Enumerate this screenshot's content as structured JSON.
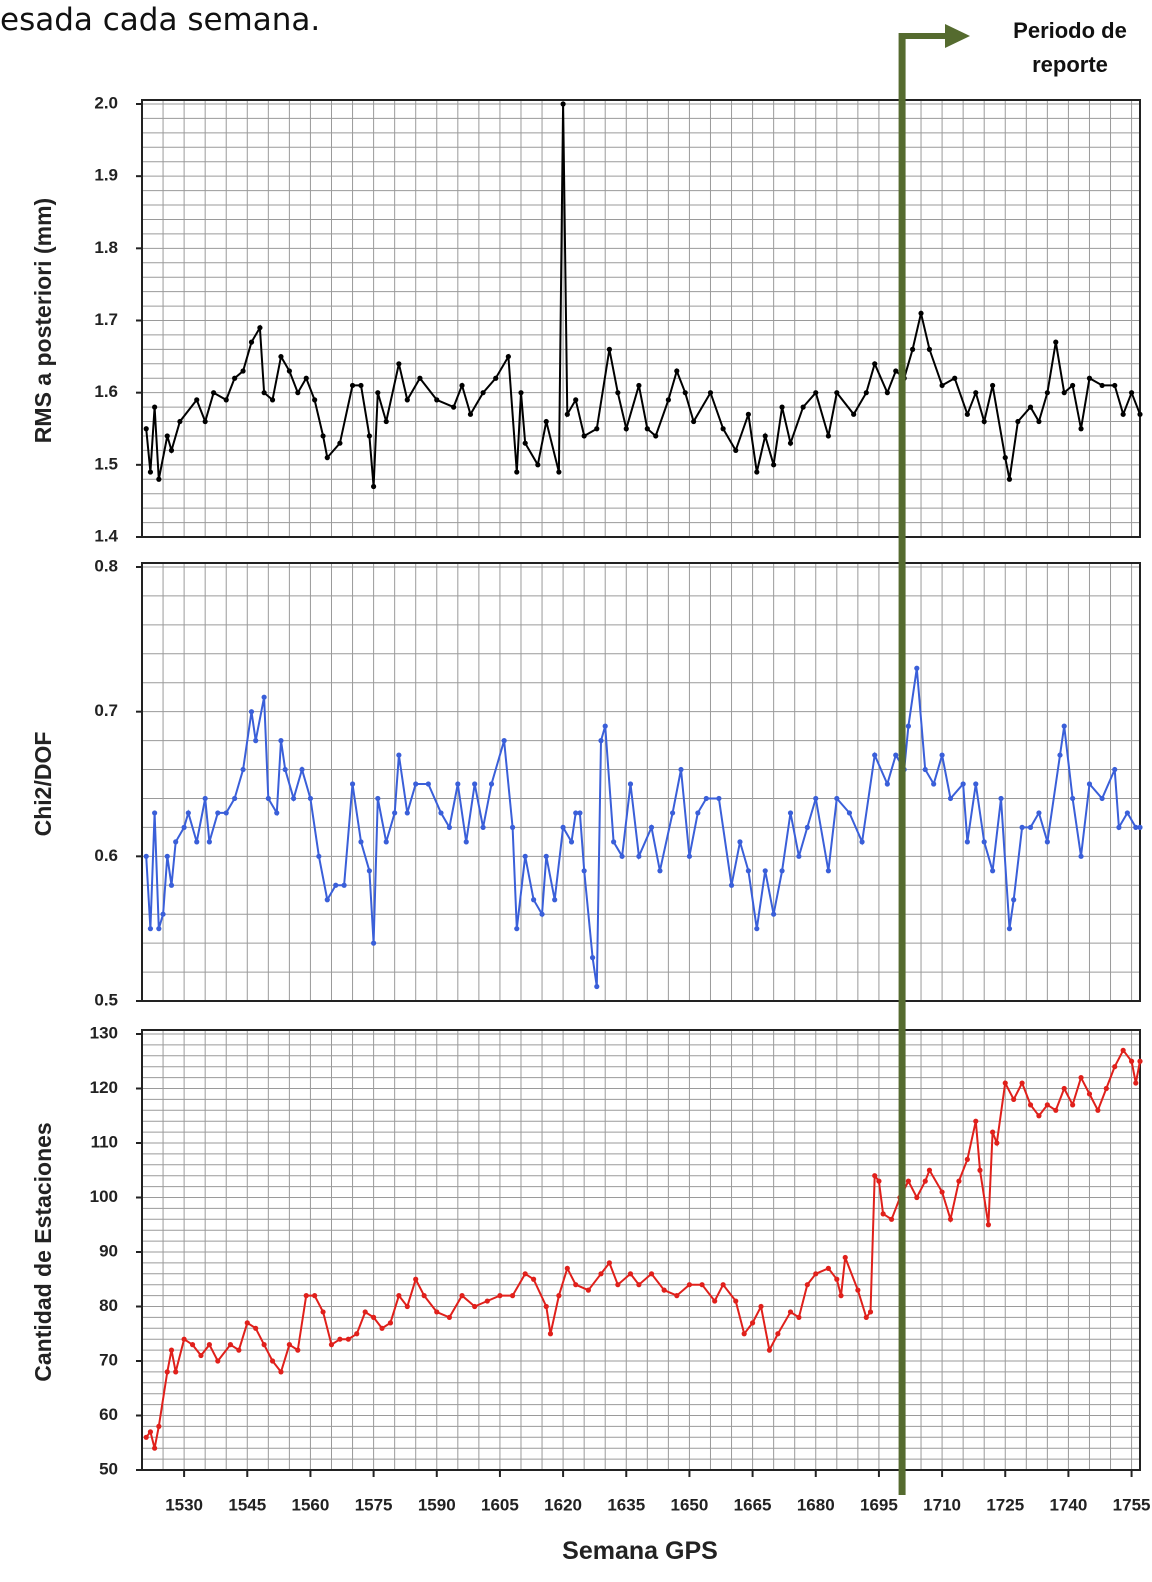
{
  "header": "esada cada semana.",
  "report_marker": {
    "label": "Periodo de reporte",
    "x": 1700.5,
    "color": "#556b2f"
  },
  "chart_data": [
    {
      "type": "line",
      "ylabel": "RMS a posteriori (mm)",
      "color": "#000000",
      "xlim": [
        1520,
        1757
      ],
      "ylim": [
        1.4,
        2.0
      ],
      "yticks": [
        1.4,
        1.5,
        1.6,
        1.7,
        1.8,
        1.9,
        {
          "value": 2,
          "label": "2.0"
        }
      ],
      "grid": true,
      "xgrid_step": 5,
      "ygrid_step": 0.02,
      "x": [
        1521,
        1522,
        1523,
        1524,
        1526,
        1527,
        1529,
        1533,
        1535,
        1537,
        1540,
        1542,
        1544,
        1546,
        1548,
        1549,
        1551,
        1553,
        1555,
        1557,
        1559,
        1561,
        1563,
        1564,
        1567,
        1570,
        1572,
        1574,
        1575,
        1576,
        1578,
        1581,
        1583,
        1586,
        1590,
        1594,
        1596,
        1598,
        1601,
        1604,
        1607,
        1609,
        1610,
        1611,
        1614,
        1616,
        1619,
        1620,
        1621,
        1623,
        1625,
        1628,
        1631,
        1633,
        1635,
        1638,
        1640,
        1642,
        1645,
        1647,
        1649,
        1651,
        1655,
        1658,
        1661,
        1664,
        1666,
        1668,
        1670,
        1672,
        1674,
        1677,
        1680,
        1683,
        1685,
        1689,
        1692,
        1694,
        1697,
        1699,
        1701,
        1703,
        1705,
        1707,
        1710,
        1713,
        1716,
        1718,
        1720,
        1722,
        1725,
        1726,
        1728,
        1731,
        1733,
        1735,
        1737,
        1739,
        1741,
        1743,
        1745,
        1748,
        1751,
        1753,
        1755,
        1757
      ],
      "values": [
        1.55,
        1.49,
        1.58,
        1.48,
        1.54,
        1.52,
        1.56,
        1.59,
        1.56,
        1.6,
        1.59,
        1.62,
        1.63,
        1.67,
        1.69,
        1.6,
        1.59,
        1.65,
        1.63,
        1.6,
        1.62,
        1.59,
        1.54,
        1.51,
        1.53,
        1.61,
        1.61,
        1.54,
        1.47,
        1.6,
        1.56,
        1.64,
        1.59,
        1.62,
        1.59,
        1.58,
        1.61,
        1.57,
        1.6,
        1.62,
        1.65,
        1.49,
        1.6,
        1.53,
        1.5,
        1.56,
        1.49,
        2.0,
        1.57,
        1.59,
        1.54,
        1.55,
        1.66,
        1.6,
        1.55,
        1.61,
        1.55,
        1.54,
        1.59,
        1.63,
        1.6,
        1.56,
        1.6,
        1.55,
        1.52,
        1.57,
        1.49,
        1.54,
        1.5,
        1.58,
        1.53,
        1.58,
        1.6,
        1.54,
        1.6,
        1.57,
        1.6,
        1.64,
        1.6,
        1.63,
        1.62,
        1.66,
        1.71,
        1.66,
        1.61,
        1.62,
        1.57,
        1.6,
        1.56,
        1.61,
        1.51,
        1.48,
        1.56,
        1.58,
        1.56,
        1.6,
        1.67,
        1.6,
        1.61,
        1.55,
        1.62,
        1.61,
        1.61,
        1.57,
        1.6,
        1.57
      ]
    },
    {
      "type": "line",
      "ylabel": "Chi2/DOF",
      "color": "#3a5fd9",
      "xlim": [
        1520,
        1757
      ],
      "ylim": [
        0.5,
        0.8
      ],
      "yticks": [
        0.5,
        0.6,
        0.7,
        0.8
      ],
      "grid": true,
      "xgrid_step": 5,
      "ygrid_step": 0.02,
      "x": [
        1521,
        1522,
        1523,
        1524,
        1525,
        1526,
        1527,
        1528,
        1530,
        1531,
        1533,
        1535,
        1536,
        1538,
        1540,
        1542,
        1544,
        1546,
        1547,
        1549,
        1550,
        1552,
        1553,
        1554,
        1556,
        1558,
        1560,
        1562,
        1564,
        1566,
        1568,
        1570,
        1572,
        1574,
        1575,
        1576,
        1578,
        1580,
        1581,
        1583,
        1585,
        1588,
        1591,
        1593,
        1595,
        1597,
        1599,
        1601,
        1603,
        1606,
        1608,
        1609,
        1611,
        1613,
        1615,
        1616,
        1618,
        1620,
        1622,
        1623,
        1624,
        1625,
        1627,
        1628,
        1629,
        1630,
        1632,
        1634,
        1636,
        1638,
        1641,
        1643,
        1646,
        1648,
        1650,
        1652,
        1654,
        1657,
        1660,
        1662,
        1664,
        1666,
        1668,
        1670,
        1672,
        1674,
        1676,
        1678,
        1680,
        1683,
        1685,
        1688,
        1691,
        1694,
        1697,
        1699,
        1701,
        1702,
        1704,
        1706,
        1708,
        1710,
        1712,
        1715,
        1716,
        1718,
        1720,
        1722,
        1724,
        1726,
        1727,
        1729,
        1731,
        1733,
        1735,
        1738,
        1739,
        1741,
        1743,
        1745,
        1748,
        1751,
        1752,
        1754,
        1756,
        1757
      ],
      "values": [
        0.6,
        0.55,
        0.63,
        0.55,
        0.56,
        0.6,
        0.58,
        0.61,
        0.62,
        0.63,
        0.61,
        0.64,
        0.61,
        0.63,
        0.63,
        0.64,
        0.66,
        0.7,
        0.68,
        0.71,
        0.64,
        0.63,
        0.68,
        0.66,
        0.64,
        0.66,
        0.64,
        0.6,
        0.57,
        0.58,
        0.58,
        0.65,
        0.61,
        0.59,
        0.54,
        0.64,
        0.61,
        0.63,
        0.67,
        0.63,
        0.65,
        0.65,
        0.63,
        0.62,
        0.65,
        0.61,
        0.65,
        0.62,
        0.65,
        0.68,
        0.62,
        0.55,
        0.6,
        0.57,
        0.56,
        0.6,
        0.57,
        0.62,
        0.61,
        0.63,
        0.63,
        0.59,
        0.53,
        0.51,
        0.68,
        0.69,
        0.61,
        0.6,
        0.65,
        0.6,
        0.62,
        0.59,
        0.63,
        0.66,
        0.6,
        0.63,
        0.64,
        0.64,
        0.58,
        0.61,
        0.59,
        0.55,
        0.59,
        0.56,
        0.59,
        0.63,
        0.6,
        0.62,
        0.64,
        0.59,
        0.64,
        0.63,
        0.61,
        0.67,
        0.65,
        0.67,
        0.66,
        0.69,
        0.73,
        0.66,
        0.65,
        0.67,
        0.64,
        0.65,
        0.61,
        0.65,
        0.61,
        0.59,
        0.64,
        0.55,
        0.57,
        0.62,
        0.62,
        0.63,
        0.61,
        0.67,
        0.69,
        0.64,
        0.6,
        0.65,
        0.64,
        0.66,
        0.62,
        0.63,
        0.62,
        0.62
      ]
    },
    {
      "type": "line",
      "ylabel": "Cantidad de Estaciones",
      "xlabel": "Semana GPS",
      "color": "#e0201b",
      "xlim": [
        1520,
        1757
      ],
      "ylim": [
        50,
        130
      ],
      "yticks": [
        50,
        60,
        70,
        80,
        90,
        100,
        110,
        120,
        130
      ],
      "xticks": [
        1530,
        1545,
        1560,
        1575,
        1590,
        1605,
        1620,
        1635,
        1650,
        1665,
        1680,
        1695,
        1710,
        1725,
        1740,
        1755
      ],
      "grid": true,
      "xgrid_step": 5,
      "ygrid_step": 2,
      "x": [
        1521,
        1522,
        1523,
        1524,
        1526,
        1527,
        1528,
        1530,
        1532,
        1534,
        1536,
        1538,
        1541,
        1543,
        1545,
        1547,
        1549,
        1551,
        1553,
        1555,
        1557,
        1559,
        1561,
        1563,
        1565,
        1567,
        1569,
        1571,
        1573,
        1575,
        1577,
        1579,
        1581,
        1583,
        1585,
        1587,
        1590,
        1593,
        1596,
        1599,
        1602,
        1605,
        1608,
        1611,
        1613,
        1616,
        1617,
        1619,
        1621,
        1623,
        1626,
        1629,
        1631,
        1633,
        1636,
        1638,
        1641,
        1644,
        1647,
        1650,
        1653,
        1656,
        1658,
        1661,
        1663,
        1665,
        1667,
        1669,
        1671,
        1674,
        1676,
        1678,
        1680,
        1683,
        1685,
        1686,
        1687,
        1690,
        1692,
        1693,
        1694,
        1695,
        1696,
        1698,
        1700,
        1702,
        1704,
        1706,
        1707,
        1710,
        1712,
        1714,
        1716,
        1718,
        1719,
        1721,
        1722,
        1723,
        1725,
        1727,
        1729,
        1731,
        1733,
        1735,
        1737,
        1739,
        1741,
        1743,
        1745,
        1747,
        1749,
        1751,
        1753,
        1755,
        1756,
        1757
      ],
      "values": [
        56,
        57,
        54,
        58,
        68,
        72,
        68,
        74,
        73,
        71,
        73,
        70,
        73,
        72,
        77,
        76,
        73,
        70,
        68,
        73,
        72,
        82,
        82,
        79,
        73,
        74,
        74,
        75,
        79,
        78,
        76,
        77,
        82,
        80,
        85,
        82,
        79,
        78,
        82,
        80,
        81,
        82,
        82,
        86,
        85,
        80,
        75,
        82,
        87,
        84,
        83,
        86,
        88,
        84,
        86,
        84,
        86,
        83,
        82,
        84,
        84,
        81,
        84,
        81,
        75,
        77,
        80,
        72,
        75,
        79,
        78,
        84,
        86,
        87,
        85,
        82,
        89,
        83,
        78,
        79,
        104,
        103,
        97,
        96,
        100,
        103,
        100,
        103,
        105,
        101,
        96,
        103,
        107,
        114,
        105,
        95,
        112,
        110,
        121,
        118,
        121,
        117,
        115,
        117,
        116,
        120,
        117,
        122,
        119,
        116,
        120,
        124,
        127,
        125,
        121,
        125
      ]
    }
  ]
}
